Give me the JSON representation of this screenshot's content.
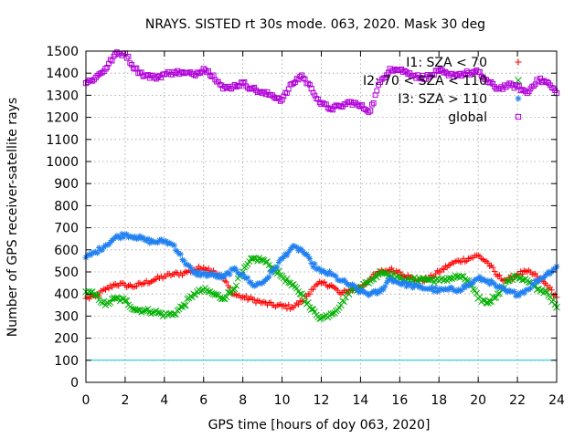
{
  "chart_data": {
    "type": "scatter",
    "title": "NRAYS. SISTED rt 30s mode. 063, 2020. Mask 30 deg",
    "xlabel": "GPS time [hours of doy 063, 2020]",
    "ylabel": "Number of GPS receiver-satellite rays",
    "xlim": [
      0,
      24
    ],
    "ylim": [
      0,
      1500
    ],
    "xticks": [
      "0",
      "2",
      "4",
      "6",
      "8",
      "10",
      "12",
      "14",
      "16",
      "18",
      "20",
      "22",
      "24"
    ],
    "yticks": [
      "0",
      "100",
      "200",
      "300",
      "400",
      "500",
      "600",
      "700",
      "800",
      "900",
      "1000",
      "1100",
      "1200",
      "1300",
      "1400",
      "1500"
    ],
    "grid": true,
    "legend_position": "top-right",
    "threshold_line": {
      "value": 100,
      "color": "#00c8e0"
    },
    "series": [
      {
        "name": "I1: SZA < 70",
        "marker": "+",
        "color": "#ff0000",
        "x": [
          0,
          0.5,
          1,
          1.5,
          2,
          2.5,
          3,
          3.5,
          4,
          4.5,
          5,
          5.5,
          6,
          6.5,
          7,
          7.5,
          8,
          8.5,
          9,
          9.5,
          10,
          10.5,
          11,
          11.5,
          12,
          12.5,
          13,
          13.5,
          14,
          14.5,
          15,
          15.5,
          16,
          16.5,
          17,
          17.5,
          18,
          18.5,
          19,
          19.5,
          20,
          20.5,
          21,
          21.5,
          22,
          22.5,
          23,
          23.5,
          24
        ],
        "values": [
          380,
          390,
          420,
          445,
          440,
          435,
          450,
          465,
          480,
          490,
          495,
          510,
          520,
          505,
          470,
          400,
          385,
          375,
          360,
          350,
          345,
          340,
          365,
          420,
          450,
          440,
          400,
          420,
          430,
          470,
          500,
          510,
          500,
          475,
          460,
          470,
          500,
          530,
          550,
          560,
          575,
          540,
          480,
          460,
          490,
          500,
          480,
          440,
          385
        ]
      },
      {
        "name": "I2: 70 < SZA < 110",
        "marker": "x",
        "color": "#00b000",
        "x": [
          0,
          0.5,
          1,
          1.5,
          2,
          2.5,
          3,
          3.5,
          4,
          4.5,
          5,
          5.5,
          6,
          6.5,
          7,
          7.5,
          8,
          8.5,
          9,
          9.5,
          10,
          10.5,
          11,
          11.5,
          12,
          12.5,
          13,
          13.5,
          14,
          14.5,
          15,
          15.5,
          16,
          16.5,
          17,
          17.5,
          18,
          18.5,
          19,
          19.5,
          20,
          20.5,
          21,
          21.5,
          22,
          22.5,
          23,
          23.5,
          24
        ],
        "values": [
          410,
          395,
          350,
          380,
          370,
          330,
          325,
          320,
          305,
          310,
          350,
          400,
          420,
          400,
          380,
          420,
          500,
          560,
          555,
          520,
          480,
          440,
          400,
          330,
          290,
          310,
          350,
          420,
          430,
          460,
          500,
          490,
          470,
          460,
          470,
          465,
          460,
          470,
          480,
          460,
          380,
          360,
          400,
          460,
          480,
          460,
          420,
          410,
          340
        ]
      },
      {
        "name": "I3: SZA > 110",
        "marker": "*",
        "color": "#2080f0",
        "x": [
          0,
          0.5,
          1,
          1.5,
          2,
          2.5,
          3,
          3.5,
          4,
          4.5,
          5,
          5.5,
          6,
          6.5,
          7,
          7.5,
          8,
          8.5,
          9,
          9.5,
          10,
          10.5,
          11,
          11.5,
          12,
          12.5,
          13,
          13.5,
          14,
          14.5,
          15,
          15.5,
          16,
          16.5,
          17,
          17.5,
          18,
          18.5,
          19,
          19.5,
          20,
          20.5,
          21,
          21.5,
          22,
          22.5,
          23,
          23.5,
          24
        ],
        "values": [
          565,
          590,
          620,
          655,
          670,
          660,
          645,
          635,
          640,
          620,
          550,
          495,
          490,
          485,
          475,
          510,
          490,
          440,
          450,
          500,
          560,
          610,
          600,
          540,
          500,
          490,
          460,
          440,
          410,
          400,
          410,
          470,
          450,
          440,
          430,
          425,
          415,
          420,
          420,
          440,
          470,
          460,
          430,
          410,
          400,
          420,
          460,
          490,
          525
        ]
      },
      {
        "name": "global",
        "marker": "□",
        "color": "#b000d8",
        "x": [
          0,
          0.5,
          1,
          1.5,
          2,
          2.5,
          3,
          3.5,
          4,
          4.5,
          5,
          5.5,
          6,
          6.5,
          7,
          7.5,
          8,
          8.5,
          9,
          9.5,
          10,
          10.5,
          11,
          11.5,
          12,
          12.5,
          13,
          13.5,
          14,
          14.5,
          15,
          15.5,
          16,
          16.5,
          17,
          17.5,
          18,
          18.5,
          19,
          19.5,
          20,
          20.5,
          21,
          21.5,
          22,
          22.5,
          23,
          23.5,
          24
        ],
        "values": [
          1355,
          1380,
          1420,
          1485,
          1490,
          1420,
          1390,
          1380,
          1395,
          1405,
          1400,
          1395,
          1420,
          1390,
          1330,
          1340,
          1355,
          1330,
          1310,
          1300,
          1280,
          1350,
          1390,
          1330,
          1260,
          1240,
          1250,
          1270,
          1250,
          1230,
          1360,
          1420,
          1415,
          1400,
          1380,
          1385,
          1410,
          1390,
          1395,
          1400,
          1405,
          1360,
          1330,
          1345,
          1340,
          1310,
          1370,
          1360,
          1310
        ]
      }
    ]
  }
}
